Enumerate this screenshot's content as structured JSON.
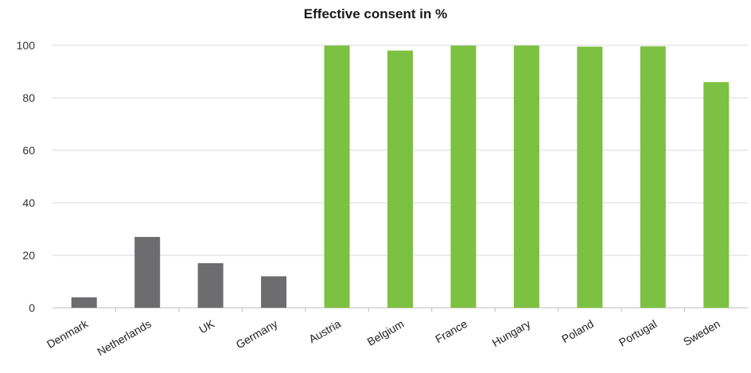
{
  "chart_data": {
    "type": "bar",
    "title": "Effective consent in %",
    "xlabel": "",
    "ylabel": "",
    "categories": [
      "Denmark",
      "Netherlands",
      "UK",
      "Germany",
      "Austria",
      "Belgium",
      "France",
      "Hungary",
      "Poland",
      "Portugal",
      "Sweden"
    ],
    "values": [
      4,
      27,
      17,
      12,
      99.9,
      98,
      99.9,
      99.9,
      99.5,
      99.6,
      86
    ],
    "bar_colors": [
      "#6d6d6f",
      "#6d6d6f",
      "#6d6d6f",
      "#6d6d6f",
      "#7cc142",
      "#7cc142",
      "#7cc142",
      "#7cc142",
      "#7cc142",
      "#7cc142",
      "#7cc142"
    ],
    "ylim": [
      0,
      100
    ],
    "yticks": [
      0,
      20,
      40,
      60,
      80,
      100
    ],
    "grid": true,
    "legend": "none"
  }
}
